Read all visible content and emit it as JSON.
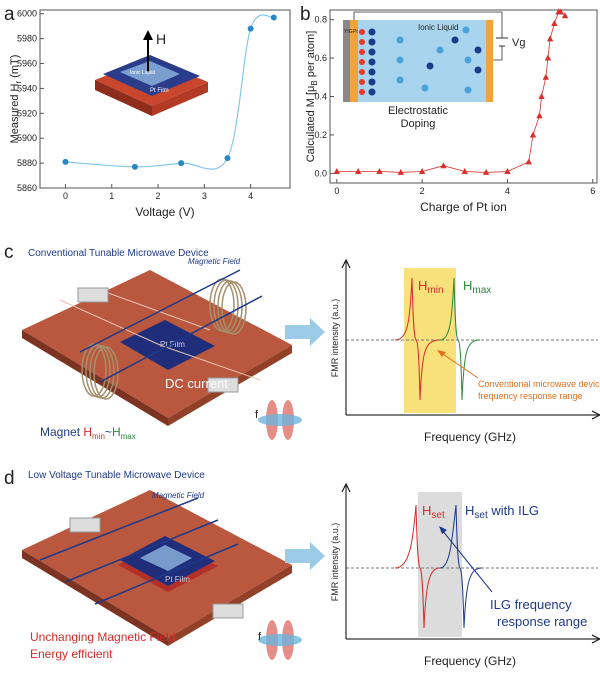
{
  "chart_data": [
    {
      "type": "scatter",
      "panel": "a",
      "x": [
        0,
        1.5,
        2.5,
        3.5,
        4,
        4.5
      ],
      "values": [
        5881,
        5877,
        5880,
        5884,
        5988,
        5997
      ],
      "color": "#2b86c4",
      "line_color": "#86c8e8",
      "xlim": [
        -0.55,
        4.85
      ],
      "xticks": [
        0,
        1,
        2,
        3,
        4
      ],
      "ylim": [
        5860,
        6003
      ],
      "yticks": [
        5860,
        5880,
        5900,
        5920,
        5940,
        5960,
        5980,
        6000
      ],
      "xlabel": "Voltage (V)",
      "ylabel": {
        "text": "Measured H",
        "sub": "r",
        "after": " (mT)"
      },
      "inset": {
        "field": "H",
        "film": "Pt Film",
        "liquid": "Ionic Liquid"
      }
    },
    {
      "type": "line",
      "panel": "b",
      "x": [
        0,
        0.5,
        1,
        1.5,
        2,
        2.5,
        3,
        3.5,
        4,
        4.5,
        4.6,
        4.75,
        4.8,
        4.9,
        4.95,
        5,
        5.1,
        5.2,
        5.25,
        5.35
      ],
      "values": [
        0.01,
        0.01,
        0.01,
        0.005,
        0.01,
        0.04,
        0.01,
        0.005,
        0.01,
        0.06,
        0.2,
        0.3,
        0.4,
        0.5,
        0.6,
        0.7,
        0.78,
        0.84,
        0.84,
        0.82
      ],
      "color": "#d9302c",
      "xlim": [
        -0.16,
        6.1
      ],
      "xticks": [
        0,
        2,
        4,
        6
      ],
      "ylim": [
        -0.05,
        0.85
      ],
      "yticks": [
        {
          "value": 0,
          "label": "0.0"
        },
        {
          "value": 0.2,
          "label": "0.2"
        },
        {
          "value": 0.4,
          "label": "0.4"
        },
        {
          "value": 0.6,
          "label": "0.6"
        },
        {
          "value": 0.8,
          "label": "0.8"
        }
      ],
      "xlabel": "Charge of Pt ion",
      "ylabel": {
        "text": "Calculated M [μ",
        "sub": "B",
        "after": " per atom]"
      },
      "inset": {
        "liquid": "Ionic Liquid",
        "voltage": "Vg",
        "pt": "Pt",
        "yig": "YIG",
        "caption": [
          "Electrostatic",
          "Doping"
        ]
      }
    }
  ],
  "panel_c": {
    "label": "c",
    "title": "Conventional Tunable Microwave Device",
    "field": "Magnetic Field",
    "film": "Pt Film",
    "current": "DC current",
    "magnet": {
      "text": "Magnet ",
      "h1": "H",
      "s1": "min",
      "sep": "~",
      "h2": "H",
      "s2": "max"
    },
    "freq": "f",
    "plot": {
      "ylabel": "FMR intensity (a.u.)",
      "xlabel": "Frequency (GHz)",
      "low": {
        "h": "H",
        "sub": "min"
      },
      "high": {
        "h": "H",
        "sub": "max"
      },
      "note": [
        "Conventional microwave device",
        "frequency response range"
      ]
    }
  },
  "panel_d": {
    "label": "d",
    "title": "Low Voltage Tunable Microwave Device",
    "field": "Magnetic Field",
    "film": "Pt Film",
    "notes": [
      "Unchanging Magnetic Field",
      "Energy efficient"
    ],
    "freq": "f",
    "plot": {
      "ylabel": "FMR intensity (a.u.)",
      "xlabel": "Frequency (GHz)",
      "low": {
        "h": "H",
        "sub": "set"
      },
      "high": {
        "h": "H",
        "sub": "set",
        "after": " with ILG"
      },
      "note": [
        "ILG  frequency",
        "response range"
      ]
    }
  }
}
